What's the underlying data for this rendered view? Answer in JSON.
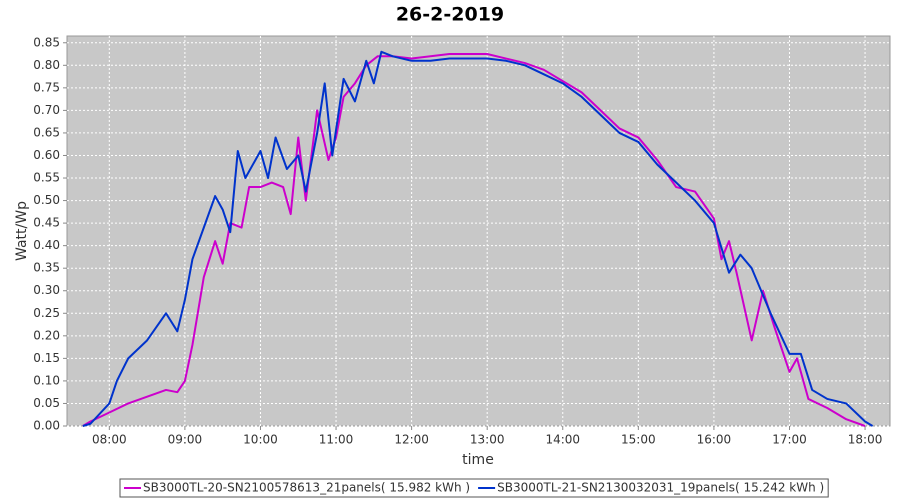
{
  "chart_data": {
    "type": "line",
    "title": "26-2-2019",
    "x_label": "time",
    "y_label": "Watt/Wp",
    "xlim": [
      7.44,
      18.33
    ],
    "ylim": [
      0,
      0.865
    ],
    "grid": true,
    "legend": "bottom",
    "xticks": [
      {
        "value": 8,
        "label": "08:00"
      },
      {
        "value": 9,
        "label": "09:00"
      },
      {
        "value": 10,
        "label": "10:00"
      },
      {
        "value": 11,
        "label": "11:00"
      },
      {
        "value": 12,
        "label": "12:00"
      },
      {
        "value": 13,
        "label": "13:00"
      },
      {
        "value": 14,
        "label": "14:00"
      },
      {
        "value": 15,
        "label": "15:00"
      },
      {
        "value": 16,
        "label": "16:00"
      },
      {
        "value": 17,
        "label": "17:00"
      },
      {
        "value": 18,
        "label": "18:00"
      }
    ],
    "yticks": [
      {
        "value": 0,
        "label": "0.00"
      },
      {
        "value": 0.05,
        "label": "0.05"
      },
      {
        "value": 0.1,
        "label": "0.10"
      },
      {
        "value": 0.15,
        "label": "0.15"
      },
      {
        "value": 0.2,
        "label": "0.20"
      },
      {
        "value": 0.25,
        "label": "0.25"
      },
      {
        "value": 0.3,
        "label": "0.30"
      },
      {
        "value": 0.35,
        "label": "0.35"
      },
      {
        "value": 0.4,
        "label": "0.40"
      },
      {
        "value": 0.45,
        "label": "0.45"
      },
      {
        "value": 0.5,
        "label": "0.50"
      },
      {
        "value": 0.55,
        "label": "0.55"
      },
      {
        "value": 0.6,
        "label": "0.60"
      },
      {
        "value": 0.65,
        "label": "0.65"
      },
      {
        "value": 0.7,
        "label": "0.70"
      },
      {
        "value": 0.75,
        "label": "0.75"
      },
      {
        "value": 0.8,
        "label": "0.80"
      },
      {
        "value": 0.85,
        "label": "0.85"
      }
    ],
    "series": [
      {
        "name": "SB3000TL-20-SN2100578613_21panels( 15.982 kWh )",
        "color": "#cc00cc",
        "x": [
          7.65,
          7.75,
          8.0,
          8.25,
          8.5,
          8.75,
          8.9,
          9.0,
          9.1,
          9.25,
          9.4,
          9.5,
          9.6,
          9.75,
          9.85,
          10.0,
          10.15,
          10.3,
          10.4,
          10.5,
          10.6,
          10.75,
          10.9,
          11.0,
          11.1,
          11.25,
          11.4,
          11.55,
          11.75,
          12.0,
          12.25,
          12.5,
          12.75,
          13.0,
          13.25,
          13.5,
          13.75,
          14.0,
          14.25,
          14.5,
          14.75,
          15.0,
          15.25,
          15.5,
          15.75,
          16.0,
          16.1,
          16.2,
          16.3,
          16.5,
          16.65,
          16.8,
          17.0,
          17.1,
          17.25,
          17.5,
          17.75,
          18.0
        ],
        "values": [
          0.0,
          0.01,
          0.03,
          0.05,
          0.065,
          0.08,
          0.075,
          0.1,
          0.18,
          0.33,
          0.41,
          0.36,
          0.45,
          0.44,
          0.53,
          0.53,
          0.54,
          0.53,
          0.47,
          0.64,
          0.5,
          0.7,
          0.59,
          0.64,
          0.73,
          0.76,
          0.8,
          0.82,
          0.82,
          0.815,
          0.82,
          0.825,
          0.825,
          0.825,
          0.815,
          0.805,
          0.79,
          0.765,
          0.74,
          0.7,
          0.66,
          0.64,
          0.59,
          0.53,
          0.52,
          0.46,
          0.37,
          0.41,
          0.34,
          0.19,
          0.3,
          0.22,
          0.12,
          0.15,
          0.06,
          0.04,
          0.015,
          0.0
        ]
      },
      {
        "name": "SB3000TL-21-SN2130032031_19panels( 15.242 kWh )",
        "color": "#0033cc",
        "x": [
          7.65,
          7.75,
          8.0,
          8.1,
          8.25,
          8.5,
          8.75,
          8.9,
          9.0,
          9.1,
          9.25,
          9.4,
          9.5,
          9.6,
          9.7,
          9.8,
          10.0,
          10.1,
          10.2,
          10.35,
          10.5,
          10.6,
          10.75,
          10.85,
          10.95,
          11.1,
          11.25,
          11.4,
          11.5,
          11.6,
          11.75,
          12.0,
          12.25,
          12.5,
          12.75,
          13.0,
          13.25,
          13.5,
          13.75,
          14.0,
          14.25,
          14.5,
          14.75,
          15.0,
          15.25,
          15.5,
          15.75,
          16.0,
          16.2,
          16.35,
          16.5,
          16.75,
          17.0,
          17.15,
          17.3,
          17.5,
          17.75,
          18.0,
          18.1
        ],
        "values": [
          0.0,
          0.005,
          0.05,
          0.1,
          0.15,
          0.19,
          0.25,
          0.21,
          0.28,
          0.37,
          0.44,
          0.51,
          0.48,
          0.43,
          0.61,
          0.55,
          0.61,
          0.55,
          0.64,
          0.57,
          0.6,
          0.52,
          0.65,
          0.76,
          0.6,
          0.77,
          0.72,
          0.81,
          0.76,
          0.83,
          0.82,
          0.81,
          0.81,
          0.815,
          0.815,
          0.815,
          0.81,
          0.8,
          0.78,
          0.76,
          0.73,
          0.69,
          0.65,
          0.63,
          0.58,
          0.54,
          0.5,
          0.45,
          0.34,
          0.38,
          0.35,
          0.25,
          0.16,
          0.16,
          0.08,
          0.06,
          0.05,
          0.01,
          0.0
        ]
      }
    ]
  }
}
